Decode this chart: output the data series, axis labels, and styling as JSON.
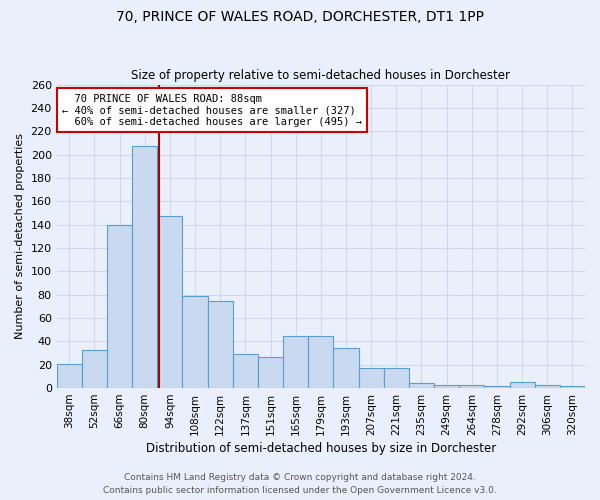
{
  "title1": "70, PRINCE OF WALES ROAD, DORCHESTER, DT1 1PP",
  "title2": "Size of property relative to semi-detached houses in Dorchester",
  "xlabel": "Distribution of semi-detached houses by size in Dorchester",
  "ylabel": "Number of semi-detached properties",
  "categories": [
    "38sqm",
    "52sqm",
    "66sqm",
    "80sqm",
    "94sqm",
    "108sqm",
    "122sqm",
    "137sqm",
    "151sqm",
    "165sqm",
    "179sqm",
    "193sqm",
    "207sqm",
    "221sqm",
    "235sqm",
    "249sqm",
    "264sqm",
    "278sqm",
    "292sqm",
    "306sqm",
    "320sqm"
  ],
  "values": [
    21,
    33,
    140,
    207,
    147,
    79,
    75,
    29,
    27,
    45,
    45,
    34,
    17,
    17,
    4,
    3,
    3,
    2,
    5,
    3,
    2
  ],
  "bar_color": "#c8d9f0",
  "bar_edge_color": "#5a9fd4",
  "property_sqm": 88,
  "prop_bin_low": 80,
  "prop_bin_high": 94,
  "prop_bin_idx": 3,
  "property_label": "70 PRINCE OF WALES ROAD: 88sqm",
  "smaller_pct": "40%",
  "smaller_count": 327,
  "larger_pct": "60%",
  "larger_count": 495,
  "marker_line_color": "#aa0000",
  "annotation_box_edge": "#cc0000",
  "annotation_box_face": "#ffffff",
  "ylim": [
    0,
    260
  ],
  "yticks": [
    0,
    20,
    40,
    60,
    80,
    100,
    120,
    140,
    160,
    180,
    200,
    220,
    240,
    260
  ],
  "bg_color": "#eaf0fb",
  "grid_color": "#d0d8ee",
  "footer1": "Contains HM Land Registry data © Crown copyright and database right 2024.",
  "footer2": "Contains public sector information licensed under the Open Government Licence v3.0."
}
